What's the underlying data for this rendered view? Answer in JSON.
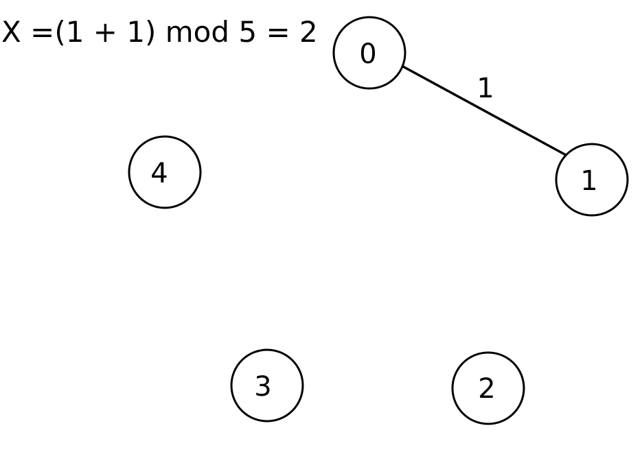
{
  "formula": "X =(1 + 1) mod 5 = 2",
  "nodes": [
    {
      "id": "0",
      "label": "0"
    },
    {
      "id": "1",
      "label": "1"
    },
    {
      "id": "2",
      "label": "2"
    },
    {
      "id": "3",
      "label": "3"
    },
    {
      "id": "4",
      "label": "4"
    }
  ],
  "edges": [
    {
      "from": "0",
      "to": "1",
      "weight": "1"
    }
  ],
  "colors": {
    "stroke": "#000000",
    "background": "#ffffff",
    "text": "#000000"
  }
}
